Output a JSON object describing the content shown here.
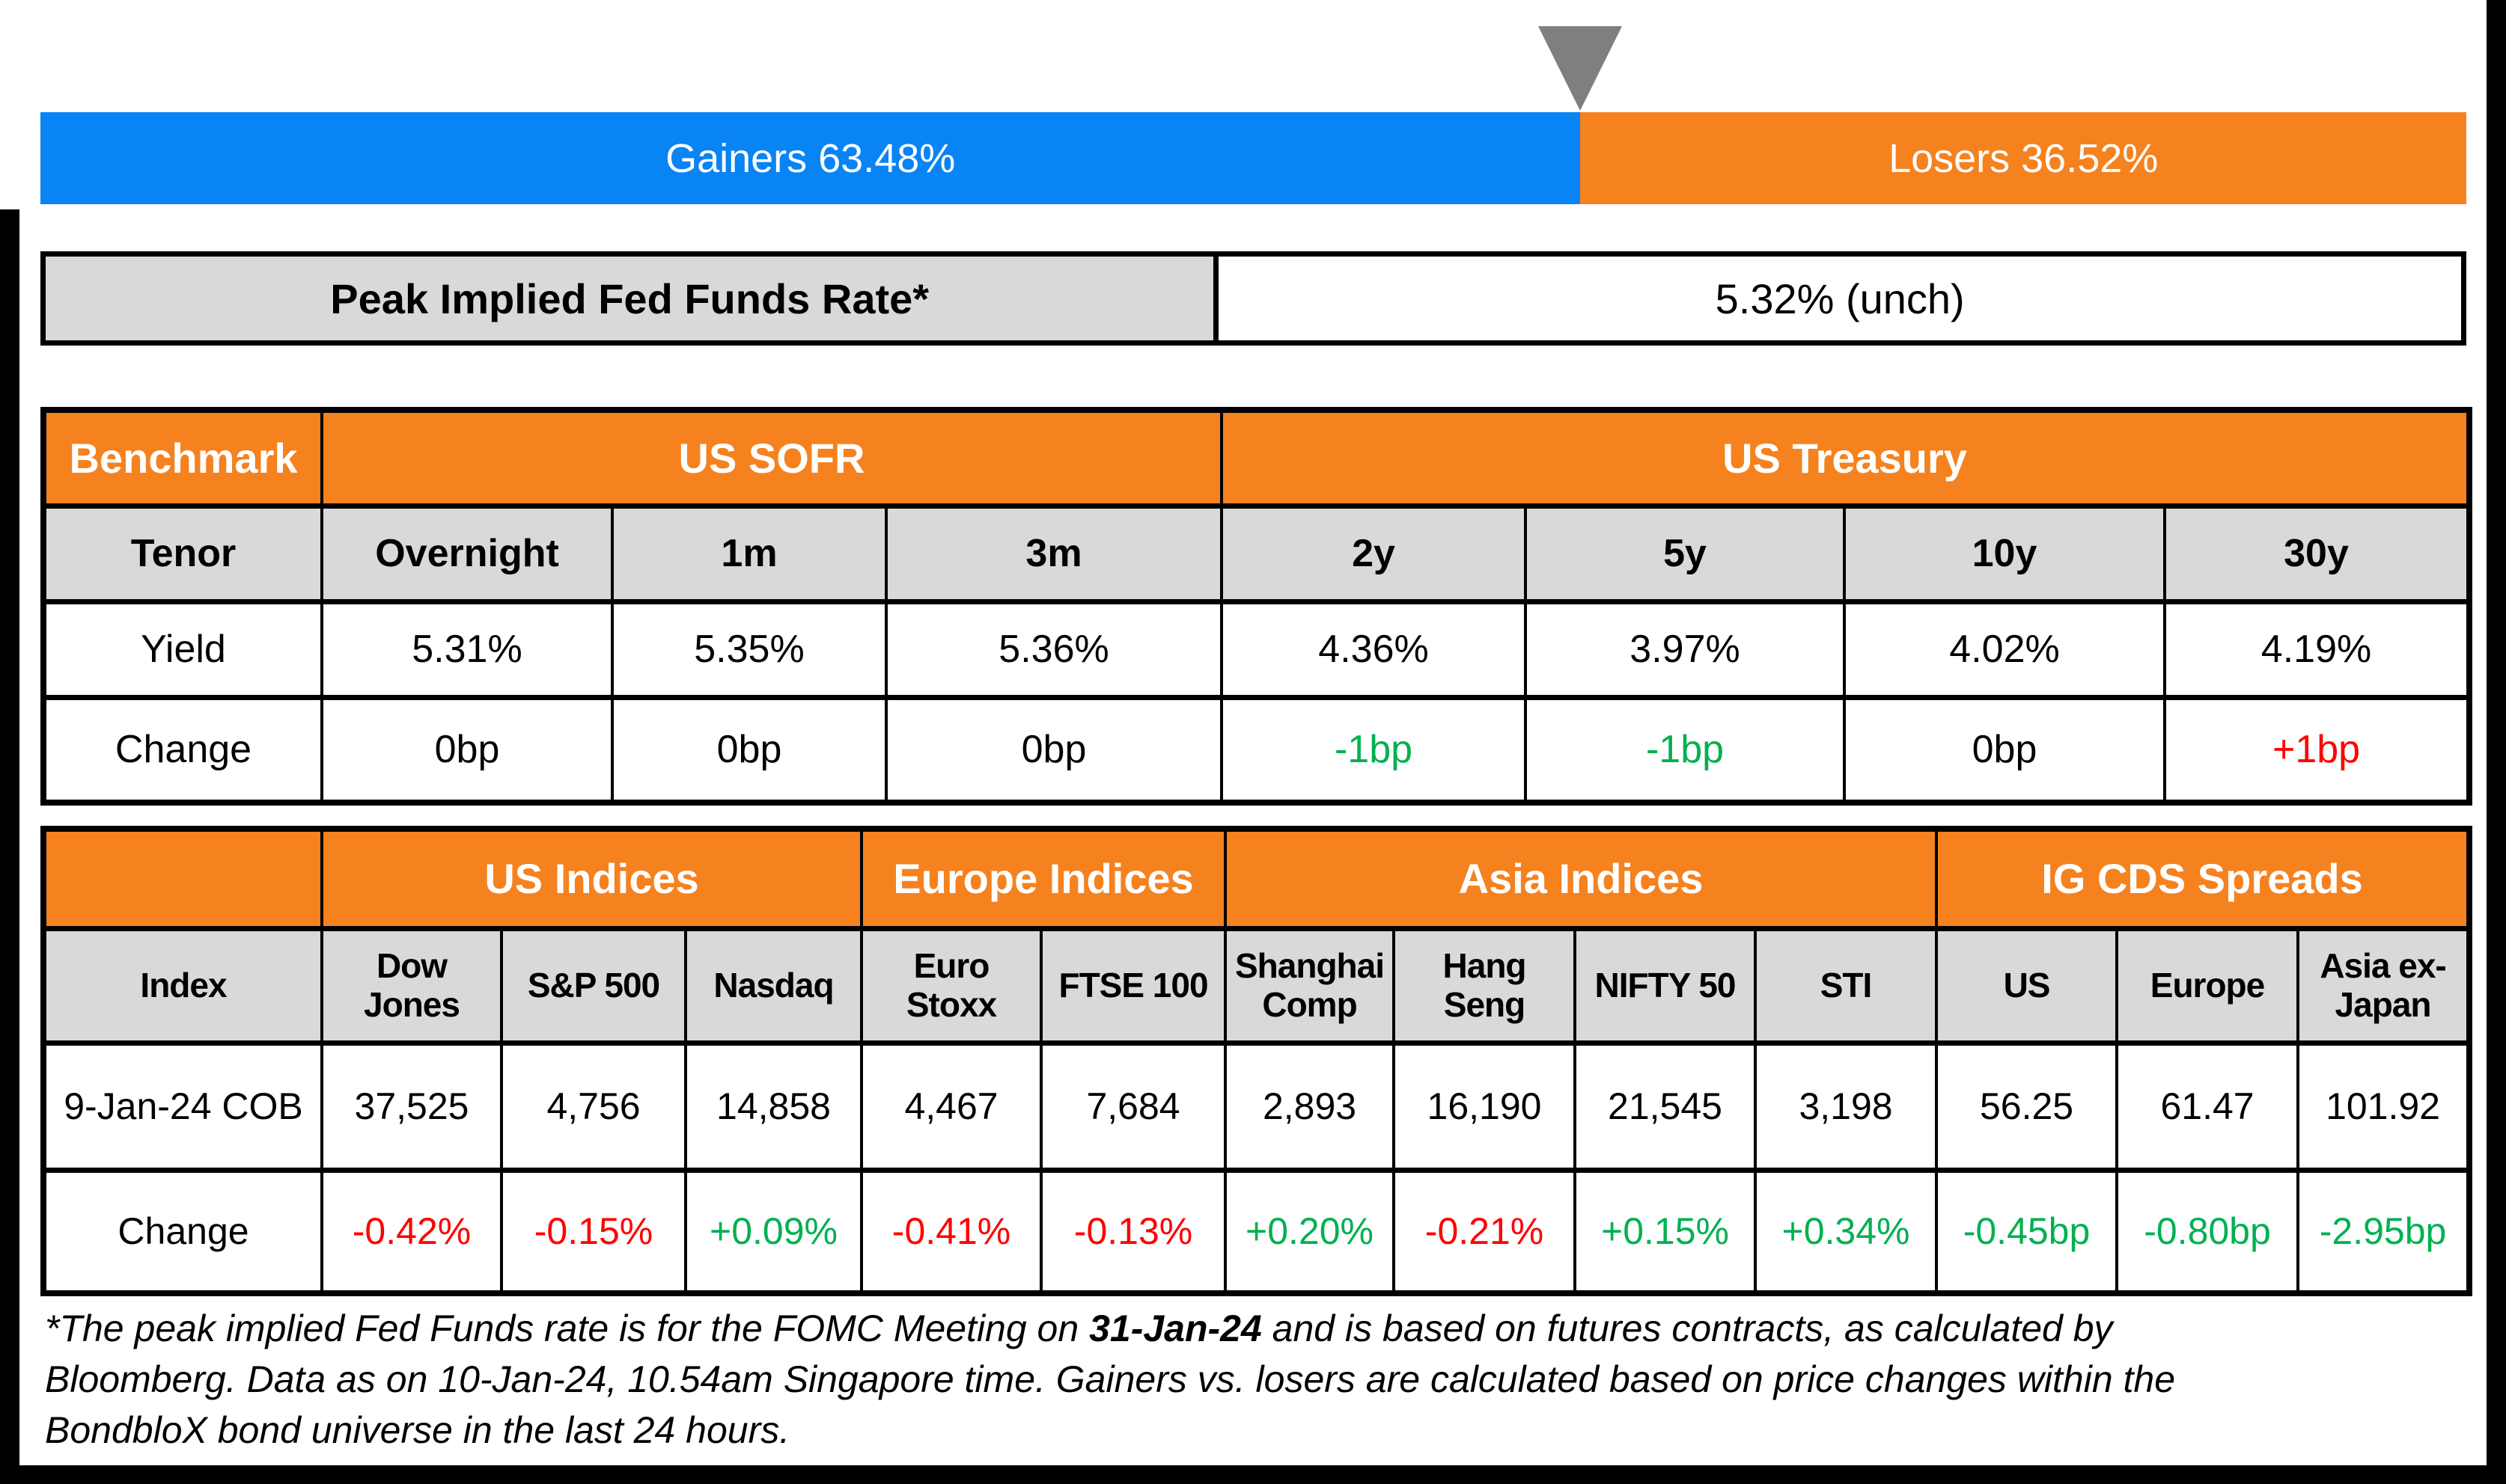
{
  "colors": {
    "positive": "#00B050",
    "negative": "#FF0000",
    "neutral": "#000000",
    "gainers_blue": "#0984F5",
    "header_orange": "#F5821F",
    "header_gray": "#D9D9D9",
    "marker_gray": "#7F7F7F"
  },
  "bar": {
    "gainers_pct": 63.48,
    "losers_pct": 36.52,
    "gainers_label": "Gainers 63.48%",
    "losers_label": "Losers 36.52%"
  },
  "peak_rate": {
    "label": "Peak Implied Fed Funds Rate*",
    "value": "5.32% (unch)"
  },
  "benchmark_table": {
    "corner_label": "Benchmark",
    "groups": {
      "sofr": "US SOFR",
      "treasury": "US Treasury"
    },
    "row_labels": {
      "tenor": "Tenor",
      "yield": "Yield",
      "change": "Change"
    },
    "columns": [
      {
        "tenor": "Overnight",
        "yield": "5.31%",
        "change": "0bp",
        "dir": "neutral"
      },
      {
        "tenor": "1m",
        "yield": "5.35%",
        "change": "0bp",
        "dir": "neutral"
      },
      {
        "tenor": "3m",
        "yield": "5.36%",
        "change": "0bp",
        "dir": "neutral"
      },
      {
        "tenor": "2y",
        "yield": "4.36%",
        "change": "-1bp",
        "dir": "positive"
      },
      {
        "tenor": "5y",
        "yield": "3.97%",
        "change": "-1bp",
        "dir": "positive"
      },
      {
        "tenor": "10y",
        "yield": "4.02%",
        "change": "0bp",
        "dir": "neutral"
      },
      {
        "tenor": "30y",
        "yield": "4.19%",
        "change": "+1bp",
        "dir": "negative"
      }
    ]
  },
  "indices_table": {
    "corner_label": "",
    "groups": {
      "us": "US Indices",
      "europe": "Europe Indices",
      "asia": "Asia Indices",
      "cds": "IG CDS Spreads"
    },
    "row_labels": {
      "index": "Index",
      "date": "9-Jan-24 COB",
      "change": "Change"
    },
    "columns": [
      {
        "name": "Dow Jones",
        "value": "37,525",
        "change": "-0.42%",
        "dir": "negative"
      },
      {
        "name": "S&P 500",
        "value": "4,756",
        "change": "-0.15%",
        "dir": "negative"
      },
      {
        "name": "Nasdaq",
        "value": "14,858",
        "change": "+0.09%",
        "dir": "positive"
      },
      {
        "name": "Euro Stoxx",
        "value": "4,467",
        "change": "-0.41%",
        "dir": "negative"
      },
      {
        "name": "FTSE 100",
        "value": "7,684",
        "change": "-0.13%",
        "dir": "negative"
      },
      {
        "name": "Shanghai Comp",
        "value": "2,893",
        "change": "+0.20%",
        "dir": "positive"
      },
      {
        "name": "Hang Seng",
        "value": "16,190",
        "change": "-0.21%",
        "dir": "negative"
      },
      {
        "name": "NIFTY 50",
        "value": "21,545",
        "change": "+0.15%",
        "dir": "positive"
      },
      {
        "name": "STI",
        "value": "3,198",
        "change": "+0.34%",
        "dir": "positive"
      },
      {
        "name": "US",
        "value": "56.25",
        "change": "-0.45bp",
        "dir": "positive"
      },
      {
        "name": "Europe",
        "value": "61.47",
        "change": "-0.80bp",
        "dir": "positive"
      },
      {
        "name": "Asia ex-Japan",
        "value": "101.92",
        "change": "-2.95bp",
        "dir": "positive"
      }
    ]
  },
  "footnote": {
    "line1_pre": "*The peak implied Fed Funds rate is for the FOMC Meeting on ",
    "line1_bold": "31-Jan-24",
    "line1_post": " and is based on futures contracts, as calculated by",
    "line2": "Bloomberg. Data as on 10-Jan-24, 10.54am Singapore time. Gainers vs. losers are calculated based on price changes within the",
    "line3": "BondbloX bond universe in the last 24 hours."
  },
  "chart_data": [
    {
      "type": "bar",
      "title": "Gainers vs Losers (BondbloX bond universe, last 24 hours)",
      "categories": [
        "Gainers",
        "Losers"
      ],
      "values": [
        63.48,
        36.52
      ],
      "orientation": "horizontal-stacked",
      "colors": [
        "#0984F5",
        "#F5821F"
      ],
      "xlim": [
        0,
        100
      ]
    },
    {
      "type": "table",
      "title": "Peak Implied Fed Funds Rate*",
      "rows": [
        [
          "Peak Implied Fed Funds Rate*",
          "5.32% (unch)"
        ]
      ]
    },
    {
      "type": "table",
      "title": "Benchmark",
      "group_headers": {
        "US SOFR": [
          "Overnight",
          "1m",
          "3m"
        ],
        "US Treasury": [
          "2y",
          "5y",
          "10y",
          "30y"
        ]
      },
      "columns": [
        "Tenor",
        "Overnight",
        "1m",
        "3m",
        "2y",
        "5y",
        "10y",
        "30y"
      ],
      "rows": [
        [
          "Yield",
          "5.31%",
          "5.35%",
          "5.36%",
          "4.36%",
          "3.97%",
          "4.02%",
          "4.19%"
        ],
        [
          "Change",
          "0bp",
          "0bp",
          "0bp",
          "-1bp",
          "-1bp",
          "0bp",
          "+1bp"
        ]
      ]
    },
    {
      "type": "table",
      "title": "Indices and IG CDS Spreads",
      "group_headers": {
        "US Indices": [
          "Dow Jones",
          "S&P 500",
          "Nasdaq"
        ],
        "Europe Indices": [
          "Euro Stoxx",
          "FTSE 100"
        ],
        "Asia Indices": [
          "Shanghai Comp",
          "Hang Seng",
          "NIFTY 50",
          "STI"
        ],
        "IG CDS Spreads": [
          "US",
          "Europe",
          "Asia ex-Japan"
        ]
      },
      "columns": [
        "Index",
        "Dow Jones",
        "S&P 500",
        "Nasdaq",
        "Euro Stoxx",
        "FTSE 100",
        "Shanghai Comp",
        "Hang Seng",
        "NIFTY 50",
        "STI",
        "US",
        "Europe",
        "Asia ex-Japan"
      ],
      "rows": [
        [
          "9-Jan-24 COB",
          "37,525",
          "4,756",
          "14,858",
          "4,467",
          "7,684",
          "2,893",
          "16,190",
          "21,545",
          "3,198",
          "56.25",
          "61.47",
          "101.92"
        ],
        [
          "Change",
          "-0.42%",
          "-0.15%",
          "+0.09%",
          "-0.41%",
          "-0.13%",
          "+0.20%",
          "-0.21%",
          "+0.15%",
          "+0.34%",
          "-0.45bp",
          "-0.80bp",
          "-2.95bp"
        ]
      ]
    }
  ]
}
